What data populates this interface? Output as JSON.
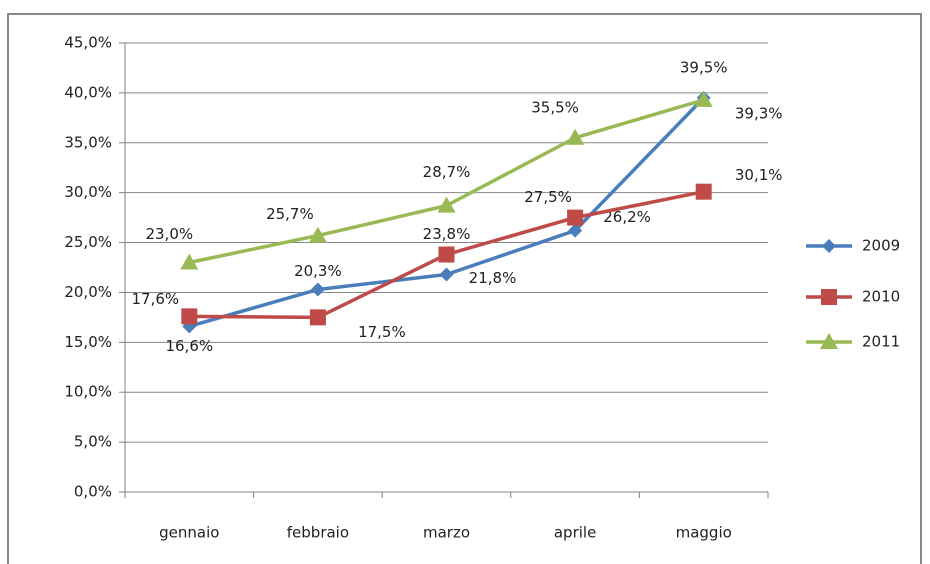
{
  "chart_data": {
    "type": "line",
    "categories": [
      "gennaio",
      "febbraio",
      "marzo",
      "aprile",
      "maggio"
    ],
    "series": [
      {
        "name": "2009",
        "color": "#4a7ebb",
        "marker": "diamond",
        "values": [
          16.6,
          20.3,
          21.8,
          26.2,
          39.5
        ],
        "value_labels": [
          "16,6%",
          "20,3%",
          "21,8%",
          "26,2%",
          "39,5%"
        ]
      },
      {
        "name": "2010",
        "color": "#be4b48",
        "marker": "square",
        "values": [
          17.6,
          17.5,
          23.8,
          27.5,
          30.1
        ],
        "value_labels": [
          "17,6%",
          "17,5%",
          "23,8%",
          "27,5%",
          "30,1%"
        ]
      },
      {
        "name": "2011",
        "color": "#98b954",
        "marker": "triangle",
        "values": [
          23.0,
          25.7,
          28.7,
          35.5,
          39.3
        ],
        "value_labels": [
          "23,0%",
          "25,7%",
          "28,7%",
          "35,5%",
          "39,3%"
        ]
      }
    ],
    "ylim": [
      0,
      45
    ],
    "yticks": [
      {
        "value": 0,
        "label": "0,0%"
      },
      {
        "value": 5,
        "label": "5,0%"
      },
      {
        "value": 10,
        "label": "10,0%"
      },
      {
        "value": 15,
        "label": "15,0%"
      },
      {
        "value": 20,
        "label": "20,0%"
      },
      {
        "value": 25,
        "label": "25,0%"
      },
      {
        "value": 30,
        "label": "30,0%"
      },
      {
        "value": 35,
        "label": "35,0%"
      },
      {
        "value": 40,
        "label": "40,0%"
      },
      {
        "value": 45,
        "label": "45,0%"
      }
    ],
    "grid": true,
    "legend": "right"
  }
}
